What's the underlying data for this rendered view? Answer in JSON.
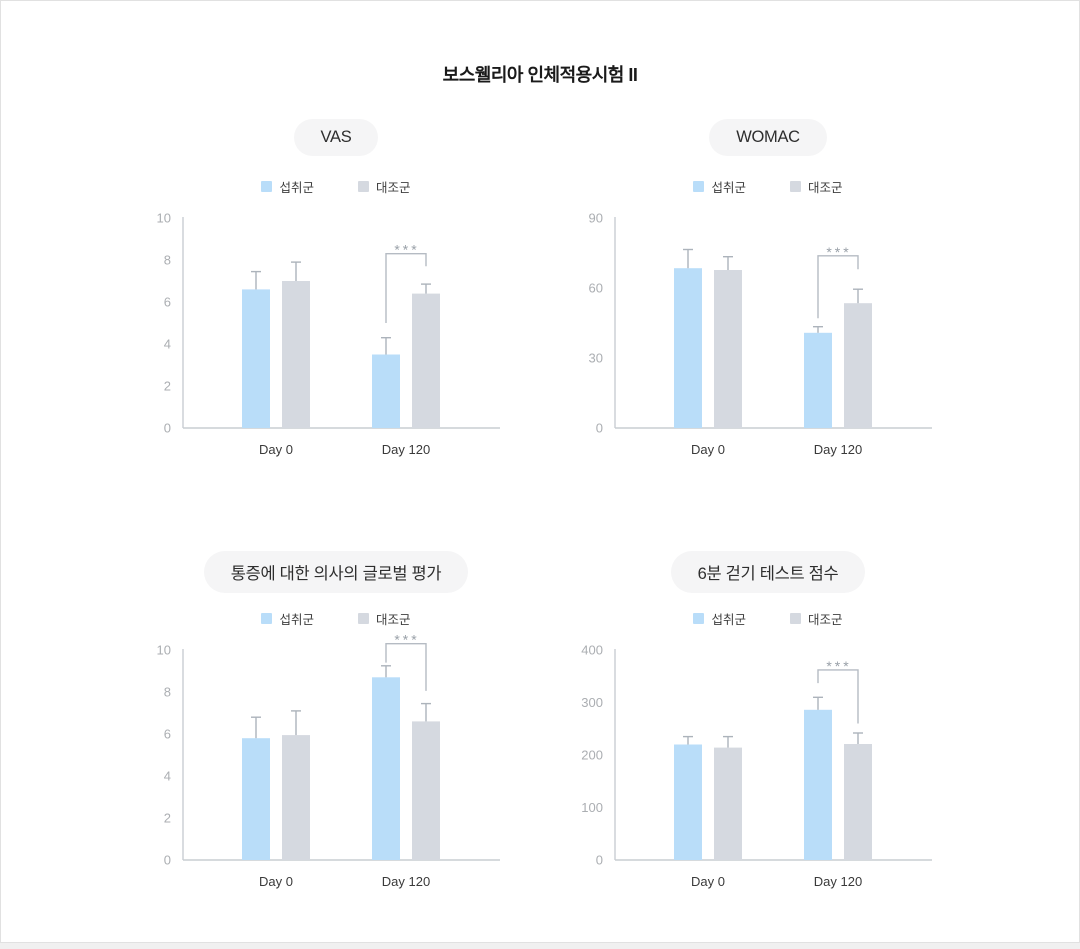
{
  "page": {
    "title": "보스웰리아 인체적용시험 II"
  },
  "colors": {
    "intake_bar": "#b9ddf9",
    "control_bar": "#d5d9e0",
    "axis_line": "#c9cdd2",
    "tick_label": "#abaeb2",
    "error_bar": "#acb3bb",
    "bracket": "#b5bbc3",
    "pill_background": "#f5f5f6"
  },
  "chart_data": [
    {
      "type": "bar",
      "title": "VAS",
      "categories": [
        "Day 0",
        "Day 120"
      ],
      "ylim": [
        0,
        10
      ],
      "yticks": [
        0,
        2,
        4,
        6,
        8,
        10
      ],
      "grid": false,
      "legend_position": "top",
      "series": [
        {
          "name": "섭취군",
          "color": "#b9ddf9",
          "values": [
            6.6,
            3.5
          ],
          "errors": [
            0.85,
            0.8
          ]
        },
        {
          "name": "대조군",
          "color": "#d5d9e0",
          "values": [
            7.0,
            6.4
          ],
          "errors": [
            0.9,
            0.45
          ]
        }
      ],
      "significance": {
        "category": "Day 120",
        "label": "***",
        "bar_y": 8.3,
        "left_drop_y": 5.0,
        "right_drop_y": 7.7
      }
    },
    {
      "type": "bar",
      "title": "WOMAC",
      "categories": [
        "Day 0",
        "Day 120"
      ],
      "ylim": [
        0,
        90
      ],
      "yticks": [
        0,
        30,
        60,
        90
      ],
      "grid": false,
      "legend_position": "top",
      "series": [
        {
          "name": "섭취군",
          "color": "#b9ddf9",
          "values": [
            68.5,
            40.8
          ],
          "errors": [
            8,
            2.6
          ]
        },
        {
          "name": "대조군",
          "color": "#d5d9e0",
          "values": [
            67.7,
            53.5
          ],
          "errors": [
            5.7,
            6
          ]
        }
      ],
      "significance": {
        "category": "Day 120",
        "label": "***",
        "bar_y": 73.8,
        "left_drop_y": 47,
        "right_drop_y": 68
      }
    },
    {
      "type": "bar",
      "title": "통증에 대한 의사의 글로벌 평가",
      "categories": [
        "Day 0",
        "Day 120"
      ],
      "ylim": [
        0,
        10
      ],
      "yticks": [
        0,
        2,
        4,
        6,
        8,
        10
      ],
      "grid": false,
      "legend_position": "top",
      "series": [
        {
          "name": "섭취군",
          "color": "#b9ddf9",
          "values": [
            5.8,
            8.7
          ],
          "errors": [
            1.0,
            0.55
          ]
        },
        {
          "name": "대조군",
          "color": "#d5d9e0",
          "values": [
            5.95,
            6.6
          ],
          "errors": [
            1.15,
            0.85
          ]
        }
      ],
      "significance": {
        "category": "Day 120",
        "label": "***",
        "bar_y": 10.3,
        "left_drop_y": 9.4,
        "right_drop_y": 8.05
      }
    },
    {
      "type": "bar",
      "title": "6분 걷기 테스트 점수",
      "categories": [
        "Day 0",
        "Day 120"
      ],
      "ylim": [
        0,
        400
      ],
      "yticks": [
        0,
        100,
        200,
        300,
        400
      ],
      "grid": false,
      "legend_position": "top",
      "series": [
        {
          "name": "섭취군",
          "color": "#b9ddf9",
          "values": [
            220,
            286
          ],
          "errors": [
            15,
            24
          ]
        },
        {
          "name": "대조군",
          "color": "#d5d9e0",
          "values": [
            214,
            221
          ],
          "errors": [
            21,
            21
          ]
        }
      ],
      "significance": {
        "category": "Day 120",
        "label": "***",
        "bar_y": 362,
        "left_drop_y": 337,
        "right_drop_y": 260
      }
    }
  ]
}
